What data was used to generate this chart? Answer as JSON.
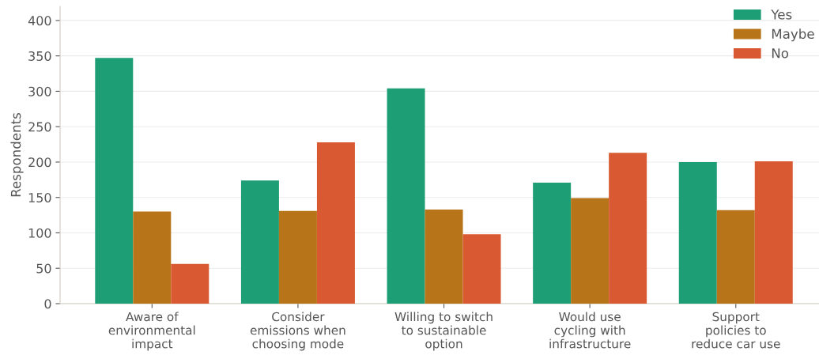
{
  "chart_data": {
    "type": "bar",
    "ylabel": "Respondents",
    "categories": [
      "Aware of\nenvironmental\nimpact",
      "Consider\nemissions when\nchoosing mode",
      "Willing to switch\nto sustainable\noption",
      "Would use\ncycling with\ninfrastructure",
      "Support\npolicies to\nreduce car use"
    ],
    "series": [
      {
        "name": "Yes",
        "color": "#1e9e75",
        "values": [
          347,
          174,
          304,
          171,
          200
        ]
      },
      {
        "name": "Maybe",
        "color": "#b87418",
        "values": [
          130,
          131,
          133,
          149,
          132
        ]
      },
      {
        "name": "No",
        "color": "#d95a32",
        "values": [
          56,
          228,
          98,
          213,
          201
        ]
      }
    ],
    "ylim": [
      0,
      420
    ],
    "yticks": [
      0,
      50,
      100,
      150,
      200,
      250,
      300,
      350,
      400
    ],
    "grid": "y",
    "legend": "top right"
  }
}
